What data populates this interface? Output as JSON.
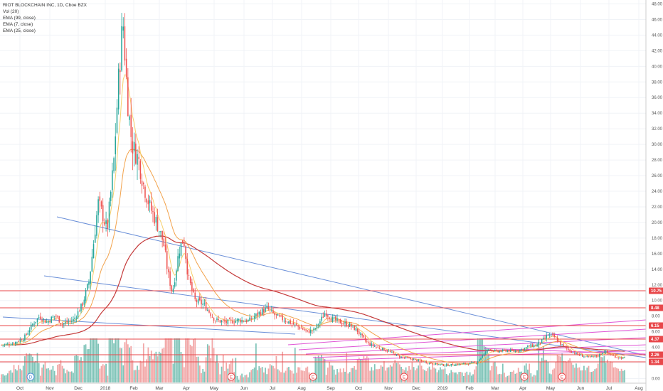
{
  "legend": {
    "title": "RIOT BLOCKCHAIN INC, 1D, Cboe BZX",
    "items": [
      "Vol (20)",
      "EMA (99, close)",
      "EMA (7, close)",
      "EMA (25, close)"
    ]
  },
  "chart_data": {
    "type": "candlestick",
    "title": "RIOT BLOCKCHAIN INC, 1D, Cboe BZX",
    "y_ticks": [
      0,
      2,
      4,
      6,
      8,
      10,
      12,
      14,
      16,
      18,
      20,
      22,
      24,
      26,
      28,
      30,
      32,
      34,
      36,
      38,
      40,
      42,
      44,
      46,
      48
    ],
    "y_tick_labels": [
      "0.00",
      "2.00",
      "4.00",
      "6.00",
      "8.00",
      "10.00",
      "12.00",
      "14.00",
      "16.00",
      "18.00",
      "20.00",
      "22.00",
      "24.00",
      "26.00",
      "28.00",
      "30.00",
      "32.00",
      "34.00",
      "36.00",
      "38.00",
      "40.00",
      "42.00",
      "44.00",
      "46.00",
      "48.00"
    ],
    "ylim": [
      -0.5,
      48.5
    ],
    "x_labels": [
      "Oct",
      "Nov",
      "Dec",
      "2018",
      "Feb",
      "Mar",
      "Apr",
      "May",
      "Jun",
      "Jul",
      "Aug",
      "Sep",
      "Oct",
      "Nov",
      "Dec",
      "2019",
      "Feb",
      "Mar",
      "Apr",
      "May",
      "Jun",
      "Jul",
      "Aug"
    ],
    "horizontal_levels": [
      {
        "label": "10.75",
        "value": 10.75
      },
      {
        "label": "8.48",
        "value": 8.48
      },
      {
        "label": "6.15",
        "value": 6.15
      },
      {
        "label": "4.37",
        "value": 4.37
      },
      {
        "label": "2.26",
        "value": 2.26
      },
      {
        "label": "1.34",
        "value": 1.34
      }
    ],
    "price_path": [
      [
        0,
        4.3
      ],
      [
        5,
        4.5
      ],
      [
        10,
        5.2
      ],
      [
        14,
        7.0
      ],
      [
        17,
        8.0
      ],
      [
        20,
        7.2
      ],
      [
        24,
        8.1
      ],
      [
        27,
        7.0
      ],
      [
        32,
        7.5
      ],
      [
        36,
        9.5
      ],
      [
        39,
        12.5
      ],
      [
        41,
        17.5
      ],
      [
        43,
        22.5
      ],
      [
        45,
        21.0
      ],
      [
        47,
        19.0
      ],
      [
        50,
        28.0
      ],
      [
        52,
        38.0
      ],
      [
        54,
        46.0
      ],
      [
        56,
        36.0
      ],
      [
        58,
        30.0
      ],
      [
        61,
        28.0
      ],
      [
        63,
        25.0
      ],
      [
        66,
        22.0
      ],
      [
        69,
        20.0
      ],
      [
        72,
        17.5
      ],
      [
        74,
        13.5
      ],
      [
        76,
        11.0
      ],
      [
        79,
        16.5
      ],
      [
        81,
        18.0
      ],
      [
        83,
        13.0
      ],
      [
        86,
        10.0
      ],
      [
        90,
        9.5
      ],
      [
        95,
        7.5
      ],
      [
        100,
        7.2
      ],
      [
        105,
        7.5
      ],
      [
        110,
        7.4
      ],
      [
        115,
        8.5
      ],
      [
        118,
        9.0
      ],
      [
        122,
        8.0
      ],
      [
        126,
        7.5
      ],
      [
        131,
        6.8
      ],
      [
        136,
        6.0
      ],
      [
        139,
        6.2
      ],
      [
        142,
        7.5
      ],
      [
        144,
        8.5
      ],
      [
        147,
        7.6
      ],
      [
        151,
        7.2
      ],
      [
        155,
        6.8
      ],
      [
        158,
        6.2
      ],
      [
        160,
        5.4
      ],
      [
        163,
        4.5
      ],
      [
        167,
        4.0
      ],
      [
        172,
        3.5
      ],
      [
        177,
        2.8
      ],
      [
        182,
        2.5
      ],
      [
        187,
        2.2
      ],
      [
        192,
        1.9
      ],
      [
        197,
        1.7
      ],
      [
        202,
        1.8
      ],
      [
        207,
        1.9
      ],
      [
        211,
        2.0
      ],
      [
        214,
        3.0
      ],
      [
        217,
        3.9
      ],
      [
        220,
        3.4
      ],
      [
        224,
        3.6
      ],
      [
        228,
        3.5
      ],
      [
        232,
        3.8
      ],
      [
        235,
        4.2
      ],
      [
        238,
        4.3
      ],
      [
        241,
        5.0
      ],
      [
        243,
        5.6
      ],
      [
        246,
        5.3
      ],
      [
        249,
        4.3
      ],
      [
        253,
        3.5
      ],
      [
        257,
        3.0
      ],
      [
        261,
        2.7
      ],
      [
        265,
        2.9
      ],
      [
        268,
        3.5
      ],
      [
        271,
        3.0
      ],
      [
        274,
        2.7
      ],
      [
        277,
        2.6
      ]
    ]
  }
}
